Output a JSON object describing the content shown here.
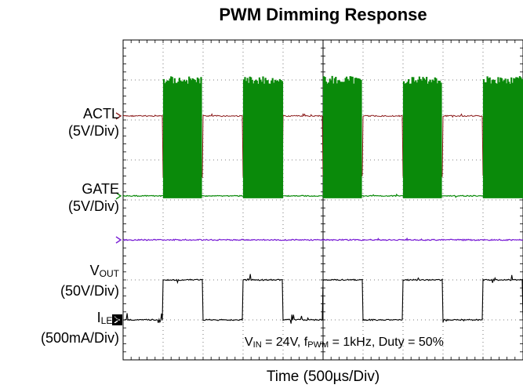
{
  "chart_data": {
    "type": "line",
    "title": "PWM Dimming Response",
    "xlabel": "Time (500µs/Div)",
    "x_divisions": 10,
    "y_divisions": 8,
    "grid": true,
    "channels": [
      {
        "name": "ACTL",
        "scale": "(5V/Div)",
        "color": "#8b1a1a",
        "low_level_div": 1.9,
        "high_level_div": 3.4
      },
      {
        "name": "GATE",
        "scale": "(5V/Div)",
        "color": "#0a8a0a",
        "low_level_div": 3.9,
        "burst_top_div": 0.9
      },
      {
        "name": "VOUT",
        "name_main": "V",
        "name_sub": "OUT",
        "scale": "(50V/Div)",
        "color": "#7a1fd6",
        "level_div": 5.0
      },
      {
        "name": "ILED",
        "name_main": "I",
        "name_sub": "LED",
        "scale": "(500mA/Div)",
        "color": "#000000",
        "low_level_div": 7.0,
        "high_level_div": 6.0
      }
    ],
    "pwm_on_intervals_div": [
      [
        1.0,
        2.0
      ],
      [
        3.0,
        4.0
      ],
      [
        5.0,
        6.0
      ],
      [
        7.0,
        8.0
      ],
      [
        9.0,
        10.0
      ]
    ],
    "annotation": {
      "text": "VIN = 24V, fPWM = 1kHz, Duty = 50%",
      "v_main": "V",
      "v_sub": "IN",
      "v_rest": " = 24V, f",
      "f_sub": "PWM",
      "f_rest": " = 1kHz, Duty = 50%"
    }
  }
}
